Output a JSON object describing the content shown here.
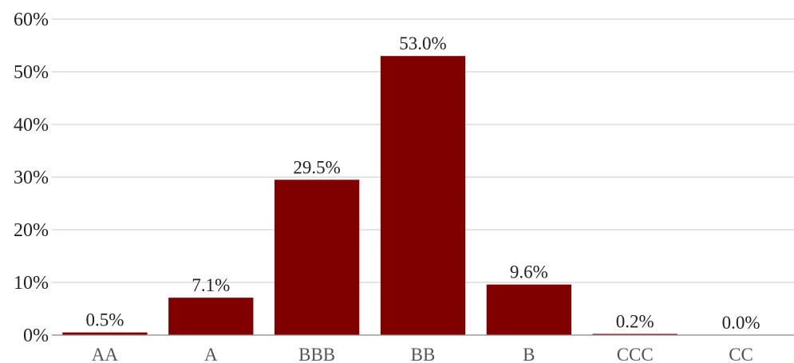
{
  "chart_data": {
    "type": "bar",
    "categories": [
      "AA",
      "A",
      "BBB",
      "BB",
      "B",
      "CCC",
      "CC"
    ],
    "values": [
      0.5,
      7.1,
      29.5,
      53.0,
      9.6,
      0.2,
      0.0
    ],
    "data_labels": [
      "0.5%",
      "7.1%",
      "29.5%",
      "53.0%",
      "9.6%",
      "0.2%",
      "0.0%"
    ],
    "y_ticks": [
      0,
      10,
      20,
      30,
      40,
      50,
      60
    ],
    "y_tick_labels": [
      "0%",
      "10%",
      "20%",
      "30%",
      "40%",
      "50%",
      "60%"
    ],
    "ylim": [
      0,
      60
    ],
    "bar_color": "#800000",
    "grid": true,
    "legend": "none"
  }
}
